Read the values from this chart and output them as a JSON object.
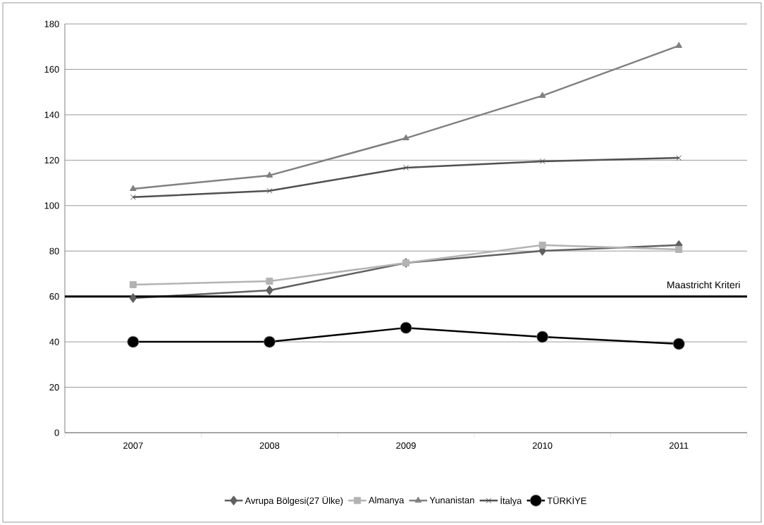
{
  "chart_data": {
    "type": "line",
    "categories": [
      "2007",
      "2008",
      "2009",
      "2010",
      "2011"
    ],
    "series": [
      {
        "name": "Avrupa Bölgesi(27 Ülke)",
        "color": "#606060",
        "marker": "diamond",
        "values": [
          59.3,
          62.7,
          74.8,
          80.1,
          82.6
        ]
      },
      {
        "name": "Almanya",
        "color": "#b3b3b3",
        "marker": "square",
        "values": [
          65.2,
          66.7,
          74.8,
          82.6,
          80.7
        ]
      },
      {
        "name": "Yunanistan",
        "color": "#808080",
        "marker": "triangle",
        "values": [
          107.4,
          113.3,
          129.7,
          148.4,
          170.4
        ]
      },
      {
        "name": "İtalya",
        "color": "#505050",
        "marker": "cross",
        "values": [
          103.7,
          106.5,
          116.7,
          119.5,
          121.0
        ]
      },
      {
        "name": "TÜRKİYE",
        "color": "#000000",
        "marker": "circle",
        "values": [
          40.0,
          40.0,
          46.2,
          42.2,
          39.1
        ]
      }
    ],
    "ylim": [
      0,
      180
    ],
    "yticks": [
      0,
      20,
      40,
      60,
      80,
      100,
      120,
      140,
      160,
      180
    ],
    "grid": "y",
    "legend": "bottom",
    "ref_lines": [
      {
        "axis": "y",
        "value": 60,
        "label": "Maastricht Kriteri",
        "color": "#000000"
      }
    ]
  }
}
